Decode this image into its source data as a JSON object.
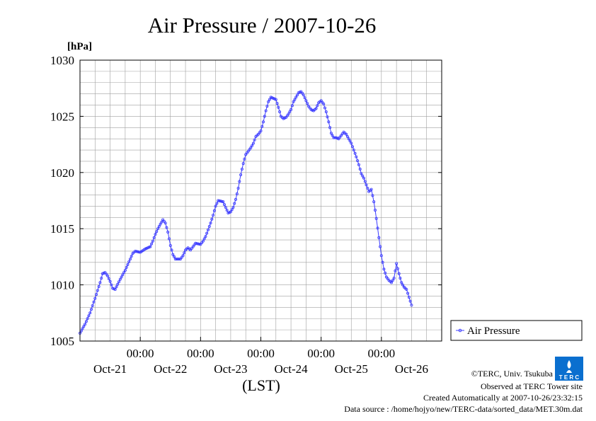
{
  "chart_data": {
    "type": "line",
    "title": "Air Pressure / 2007-10-26",
    "unit_label": "[hPa]",
    "ylabel": "",
    "xlabel": "(LST)",
    "ylim": [
      1005,
      1030
    ],
    "yticks": [
      1005,
      1010,
      1015,
      1020,
      1025,
      1030
    ],
    "y_minor_gridlines": true,
    "grid": true,
    "x_domain_hours": [
      0,
      144
    ],
    "xtick_positions_hours": [
      24,
      48,
      72,
      96,
      120
    ],
    "xtick_time_labels": [
      "00:00",
      "00:00",
      "00:00",
      "00:00",
      "00:00"
    ],
    "day_labels": [
      "Oct-21",
      "Oct-22",
      "Oct-23",
      "Oct-24",
      "Oct-25",
      "Oct-26"
    ],
    "legend_placement": "right",
    "series": [
      {
        "name": "Air Pressure",
        "color": "#3c3cff",
        "marker": "open-circle",
        "points": [
          [
            0,
            1005.7
          ],
          [
            2,
            1006.5
          ],
          [
            4,
            1007.5
          ],
          [
            6,
            1008.8
          ],
          [
            8,
            1010.2
          ],
          [
            9,
            1011.0
          ],
          [
            10,
            1011.1
          ],
          [
            11,
            1010.8
          ],
          [
            12,
            1010.3
          ],
          [
            13,
            1009.7
          ],
          [
            14,
            1009.6
          ],
          [
            16,
            1010.5
          ],
          [
            18,
            1011.3
          ],
          [
            20,
            1012.3
          ],
          [
            21,
            1012.8
          ],
          [
            22,
            1013.0
          ],
          [
            24,
            1012.9
          ],
          [
            26,
            1013.2
          ],
          [
            28,
            1013.4
          ],
          [
            29,
            1013.9
          ],
          [
            30,
            1014.5
          ],
          [
            31,
            1015.0
          ],
          [
            32,
            1015.4
          ],
          [
            33,
            1015.8
          ],
          [
            34,
            1015.5
          ],
          [
            35,
            1014.7
          ],
          [
            36,
            1013.5
          ],
          [
            37,
            1012.7
          ],
          [
            38,
            1012.3
          ],
          [
            40,
            1012.3
          ],
          [
            41,
            1012.6
          ],
          [
            42,
            1013.1
          ],
          [
            43,
            1013.3
          ],
          [
            44,
            1013.1
          ],
          [
            45,
            1013.4
          ],
          [
            46,
            1013.7
          ],
          [
            48,
            1013.6
          ],
          [
            49,
            1013.9
          ],
          [
            50,
            1014.3
          ],
          [
            51,
            1014.9
          ],
          [
            52,
            1015.5
          ],
          [
            53,
            1016.2
          ],
          [
            54,
            1017.0
          ],
          [
            55,
            1017.5
          ],
          [
            57,
            1017.4
          ],
          [
            58,
            1016.9
          ],
          [
            59,
            1016.4
          ],
          [
            60,
            1016.5
          ],
          [
            61,
            1016.9
          ],
          [
            62,
            1017.6
          ],
          [
            63,
            1018.6
          ],
          [
            64,
            1019.8
          ],
          [
            65,
            1020.8
          ],
          [
            66,
            1021.6
          ],
          [
            68,
            1022.2
          ],
          [
            69,
            1022.6
          ],
          [
            70,
            1023.2
          ],
          [
            71,
            1023.4
          ],
          [
            72,
            1023.7
          ],
          [
            73,
            1024.5
          ],
          [
            74,
            1025.5
          ],
          [
            75,
            1026.3
          ],
          [
            76,
            1026.7
          ],
          [
            78,
            1026.5
          ],
          [
            79,
            1025.8
          ],
          [
            80,
            1025.0
          ],
          [
            81,
            1024.8
          ],
          [
            82,
            1024.9
          ],
          [
            83,
            1025.2
          ],
          [
            84,
            1025.6
          ],
          [
            85,
            1026.3
          ],
          [
            86,
            1026.7
          ],
          [
            87,
            1027.1
          ],
          [
            88,
            1027.2
          ],
          [
            89,
            1026.9
          ],
          [
            90,
            1026.4
          ],
          [
            91,
            1025.9
          ],
          [
            92,
            1025.6
          ],
          [
            93,
            1025.5
          ],
          [
            94,
            1025.7
          ],
          [
            95,
            1026.2
          ],
          [
            96,
            1026.4
          ],
          [
            97,
            1026.1
          ],
          [
            98,
            1025.4
          ],
          [
            99,
            1024.5
          ],
          [
            100,
            1023.5
          ],
          [
            101,
            1023.1
          ],
          [
            102,
            1023.1
          ],
          [
            103,
            1023.0
          ],
          [
            104,
            1023.3
          ],
          [
            105,
            1023.6
          ],
          [
            106,
            1023.4
          ],
          [
            107,
            1023.0
          ],
          [
            108,
            1022.6
          ],
          [
            109,
            1022.0
          ],
          [
            110,
            1021.4
          ],
          [
            111,
            1020.7
          ],
          [
            112,
            1019.9
          ],
          [
            113,
            1019.5
          ],
          [
            114,
            1018.9
          ],
          [
            115,
            1018.3
          ],
          [
            116,
            1018.5
          ],
          [
            117,
            1017.4
          ],
          [
            118,
            1015.9
          ],
          [
            119,
            1014.2
          ],
          [
            120,
            1012.6
          ],
          [
            121,
            1011.4
          ],
          [
            122,
            1010.7
          ],
          [
            123,
            1010.4
          ],
          [
            124,
            1010.2
          ],
          [
            125,
            1010.6
          ],
          [
            126,
            1011.9
          ],
          [
            127,
            1011.0
          ],
          [
            128,
            1010.2
          ],
          [
            129,
            1009.8
          ],
          [
            130,
            1009.6
          ],
          [
            131,
            1008.9
          ],
          [
            132,
            1008.2
          ]
        ]
      }
    ]
  },
  "footer": {
    "copyright": "©TERC, Univ. Tsukuba",
    "observed": "Observed at TERC Tower site",
    "created": "Created Automatically at 2007-10-26/23:32:15",
    "source": "Data source : /home/hojyo/new/TERC-data/sorted_data/MET.30m.dat",
    "logo_text": "T E R C"
  },
  "colors": {
    "series": "#3c3cff",
    "grid": "#a0a0a0",
    "logo": "#0a6fcf"
  }
}
